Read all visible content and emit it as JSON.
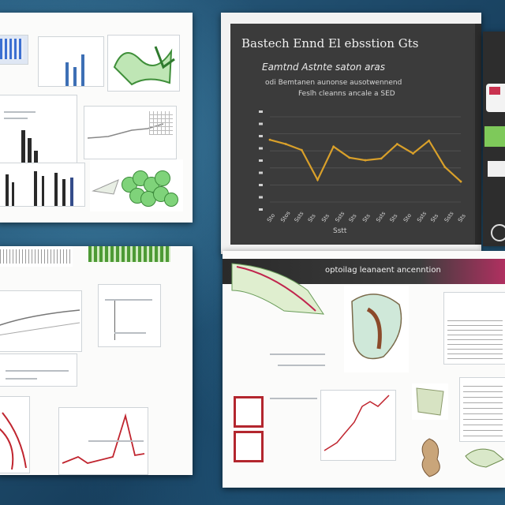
{
  "panels": {
    "top_right": {
      "title": "Bastech Ennd El ebsstion Gts",
      "subtitle": "Eamtnd Astnte saton aras",
      "caption_1": "odi Bemtanen aunonse ausotwennend",
      "caption_2": "Feslh cleanns ancale a SED",
      "xlabel": "Sstt",
      "accent_color": "#d9a02a",
      "x_ticks": [
        "Sto",
        "Stos",
        "Ssts",
        "Sts",
        "Sts",
        "Ssts",
        "Sts",
        "Sts",
        "Ssts",
        "Sts",
        "Sto",
        "Ssts",
        "Sts",
        "Ssts",
        "Sts"
      ]
    },
    "bottom_right": {
      "header": "optoilag leanaent ancenntion",
      "accent_color": "#c0254d"
    }
  },
  "chart_data": {
    "type": "line",
    "x": [
      1,
      2,
      3,
      4,
      5,
      6,
      7,
      8,
      9,
      10,
      11,
      12,
      13
    ],
    "values": [
      7.3,
      6.8,
      6.1,
      2.6,
      6.5,
      5.2,
      4.9,
      5.1,
      6.8,
      5.7,
      7.2,
      4.1,
      2.4
    ],
    "ylim": [
      0,
      10
    ],
    "grid": true
  }
}
